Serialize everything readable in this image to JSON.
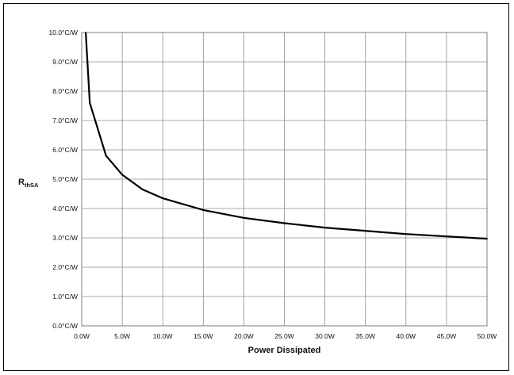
{
  "chart_data": {
    "type": "line",
    "title": "",
    "xlabel": "Power Dissipated",
    "ylabel": {
      "main": "R",
      "subscript": "thSA"
    },
    "xlim": [
      0,
      50
    ],
    "ylim": [
      0,
      10
    ],
    "grid": true,
    "legend": "none",
    "x_ticks": [
      "0.0W",
      "5.0W",
      "10.0W",
      "15.0W",
      "20.0W",
      "25.0W",
      "30.0W",
      "35.0W",
      "40.0W",
      "45.0W",
      "50.0W"
    ],
    "y_ticks": [
      "0.0°C/W",
      "1.0°C/W",
      "2.0°C/W",
      "3.0°C/W",
      "4.0°C/W",
      "5.0°C/W",
      "6.0°C/W",
      "7.0°C/W",
      "8.0°C/W",
      "9.0°C/W",
      "10.0°C/W"
    ],
    "series": [
      {
        "color": "#000000",
        "x": [
          0.5,
          1,
          3,
          5,
          7.5,
          10,
          15,
          20,
          25,
          30,
          40,
          50
        ],
        "y": [
          10.0,
          7.6,
          5.8,
          5.15,
          4.65,
          4.35,
          3.95,
          3.68,
          3.5,
          3.35,
          3.13,
          2.97
        ]
      }
    ]
  }
}
